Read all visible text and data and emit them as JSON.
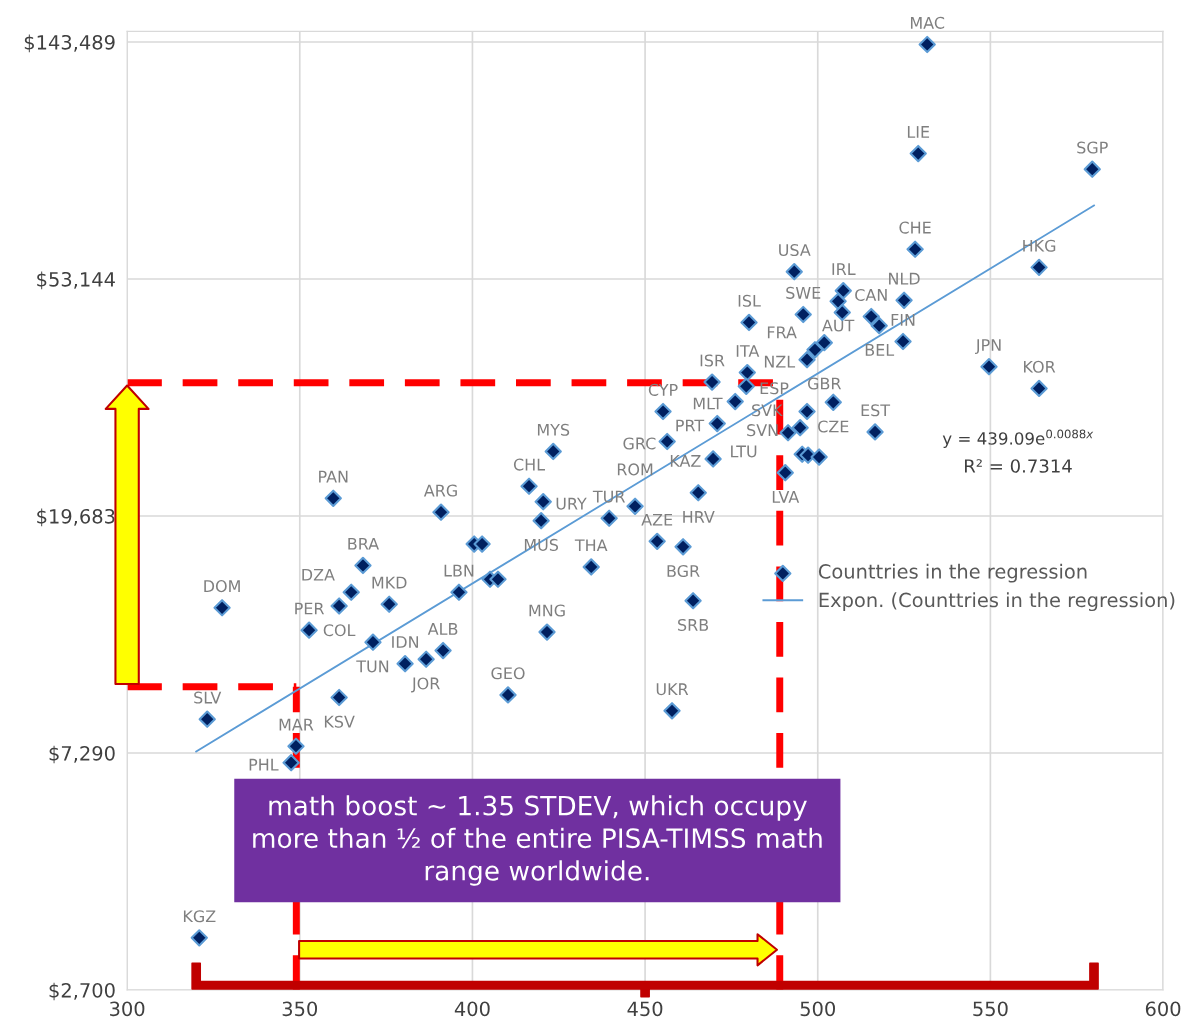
{
  "chart_data": {
    "type": "scatter",
    "xlim": [
      300,
      600
    ],
    "xticks": [
      300,
      350,
      400,
      450,
      500,
      550,
      600
    ],
    "ylim": [
      2700,
      150000
    ],
    "log": "y",
    "yticks": [
      {
        "value": 2700,
        "label": "$2,700"
      },
      {
        "value": 7290,
        "label": "$7,290"
      },
      {
        "value": 19683,
        "label": "$19,683"
      },
      {
        "value": 53144,
        "label": "$53,144"
      },
      {
        "value": 143489,
        "label": "$143,489"
      }
    ],
    "grid": true,
    "legend": "right",
    "series": [
      {
        "name": "Counttries in the regression",
        "type": "scatter",
        "marker": "diamond",
        "color": "#002060",
        "x": [
          531.7,
          529.1,
          579.5,
          528.2,
          564.1,
          493.2,
          525.0,
          507.4,
          505.9,
          507.1,
          495.8,
          515.5,
          517.8,
          480.1,
          524.7,
          501.9,
          499.2,
          496.9,
          479.6,
          479.3,
          469.4,
          476.1,
          504.5,
          496.9,
          470.9,
          494.9,
          491.4,
          516.6,
          495.5,
          497.2,
          500.4,
          469.7,
          490.6,
          549.6,
          564.1,
          455.2,
          456.4,
          465.4,
          423.4,
          416.4,
          420.5,
          419.9,
          390.9,
          400.5,
          402.8,
          405.1,
          407.4,
          396.1,
          434.4,
          439.6,
          447.1,
          453.5,
          461.0,
          463.9,
          359.7,
          368.3,
          364.9,
          361.4,
          327.5,
          375.9,
          352.7,
          371.2,
          380.5,
          386.6,
          391.5,
          361.4,
          323.2,
          348.9,
          347.5,
          410.3,
          421.6,
          457.8,
          320.9
        ],
        "values": [
          142000,
          89900,
          84200,
          60200,
          55800,
          54800,
          48600,
          50600,
          48400,
          46200,
          45800,
          45400,
          43700,
          44300,
          40900,
          40700,
          39500,
          37900,
          35900,
          33900,
          34500,
          31800,
          31700,
          30500,
          29000,
          28500,
          27900,
          28000,
          25500,
          25400,
          25200,
          25000,
          23600,
          36800,
          33600,
          30500,
          26900,
          21700,
          25800,
          22300,
          20900,
          19300,
          20000,
          17500,
          17500,
          15100,
          15100,
          14300,
          15900,
          19500,
          20500,
          17700,
          17300,
          13800,
          21200,
          16000,
          14300,
          13500,
          13400,
          13600,
          12200,
          11600,
          10600,
          10800,
          11200,
          9200,
          8400,
          7500,
          7000,
          9300,
          12100,
          8700,
          3360
        ]
      },
      {
        "name": "Expon. (Counttries in the regression)",
        "type": "line",
        "marker": "none",
        "line_style": "solid",
        "color": "#5b9bd5",
        "x": [
          320,
          580
        ],
        "values": [
          7337,
          72300
        ]
      }
    ],
    "ref_lines": [
      {
        "axis": "y",
        "value": 34400,
        "color": "#ff0000",
        "line_style": "dashed"
      },
      {
        "axis": "y",
        "value": 9620,
        "color": "#ff0000",
        "line_style": "dashed"
      },
      {
        "axis": "x",
        "value": 349,
        "color": "#ff0000",
        "line_style": "dashed"
      },
      {
        "axis": "x",
        "value": 489,
        "color": "#ff0000",
        "line_style": "dashed"
      }
    ],
    "annotations": [
      {
        "text": "MAC",
        "x": 531.7,
        "y": 142000
      },
      {
        "text": "LIE",
        "x": 529.1,
        "y": 89900
      },
      {
        "text": "SGP",
        "x": 579.5,
        "y": 84200
      },
      {
        "text": "CHE",
        "x": 528.2,
        "y": 60200
      },
      {
        "text": "HKG",
        "x": 564.1,
        "y": 55800
      },
      {
        "text": "USA",
        "x": 493.2,
        "y": 54800
      },
      {
        "text": "NLD",
        "x": 525.0,
        "y": 48600
      },
      {
        "text": "IRL",
        "x": 507.4,
        "y": 50600
      },
      {
        "text": "AUT",
        "x": 505.9,
        "y": 48400
      },
      {
        "text": "SWE",
        "x": 495.8,
        "y": 45800
      },
      {
        "text": "CAN",
        "x": 515.5,
        "y": 45400
      },
      {
        "text": "BEL",
        "x": 517.8,
        "y": 43700
      },
      {
        "text": "ISL",
        "x": 480.1,
        "y": 44300
      },
      {
        "text": "FIN",
        "x": 524.7,
        "y": 40900
      },
      {
        "text": "GBR",
        "x": 501.9,
        "y": 40700
      },
      {
        "text": "FRA",
        "x": 499.2,
        "y": 39500
      },
      {
        "text": "NZL",
        "x": 496.9,
        "y": 37900
      },
      {
        "text": "ITA",
        "x": 479.6,
        "y": 35900
      },
      {
        "text": "ESP",
        "x": 479.3,
        "y": 33900
      },
      {
        "text": "ISR",
        "x": 469.4,
        "y": 34500
      },
      {
        "text": "MLT",
        "x": 476.1,
        "y": 31800
      },
      {
        "text": "CZE",
        "x": 504.5,
        "y": 31700
      },
      {
        "text": "SVN",
        "x": 496.9,
        "y": 30500
      },
      {
        "text": "PRT",
        "x": 470.9,
        "y": 29000
      },
      {
        "text": "SVK",
        "x": 494.9,
        "y": 28500
      },
      {
        "text": "LTU",
        "x": 491.4,
        "y": 27900
      },
      {
        "text": "EST",
        "x": 516.6,
        "y": 28000
      },
      {
        "text": "KAZ",
        "x": 469.7,
        "y": 25000
      },
      {
        "text": "LVA",
        "x": 490.6,
        "y": 23600
      },
      {
        "text": "JPN",
        "x": 549.6,
        "y": 36800
      },
      {
        "text": "KOR",
        "x": 564.1,
        "y": 33600
      },
      {
        "text": "CYP",
        "x": 455.2,
        "y": 30500
      },
      {
        "text": "GRC",
        "x": 456.4,
        "y": 26900
      },
      {
        "text": "HRV",
        "x": 465.4,
        "y": 21700
      },
      {
        "text": "MYS",
        "x": 423.4,
        "y": 25800
      },
      {
        "text": "CHL",
        "x": 416.4,
        "y": 22300
      },
      {
        "text": "URY",
        "x": 420.5,
        "y": 20900
      },
      {
        "text": "MUS",
        "x": 419.9,
        "y": 19300
      },
      {
        "text": "ARG",
        "x": 390.9,
        "y": 20000
      },
      {
        "text": "LBN",
        "x": 396.1,
        "y": 14300
      },
      {
        "text": "THA",
        "x": 434.4,
        "y": 15900
      },
      {
        "text": "TUR",
        "x": 439.6,
        "y": 19500
      },
      {
        "text": "ROM",
        "x": 447.1,
        "y": 20500
      },
      {
        "text": "AZE",
        "x": 453.5,
        "y": 17700
      },
      {
        "text": "BGR",
        "x": 461.0,
        "y": 17300
      },
      {
        "text": "SRB",
        "x": 463.9,
        "y": 13800
      },
      {
        "text": "PAN",
        "x": 359.7,
        "y": 21200
      },
      {
        "text": "BRA",
        "x": 368.3,
        "y": 16000
      },
      {
        "text": "DZA",
        "x": 364.9,
        "y": 14300
      },
      {
        "text": "COL",
        "x": 361.4,
        "y": 13500
      },
      {
        "text": "DOM",
        "x": 327.5,
        "y": 13400
      },
      {
        "text": "MKD",
        "x": 375.9,
        "y": 13600
      },
      {
        "text": "PER",
        "x": 352.7,
        "y": 12200
      },
      {
        "text": "TUN",
        "x": 371.2,
        "y": 11600
      },
      {
        "text": "IDN",
        "x": 380.5,
        "y": 10600
      },
      {
        "text": "JOR",
        "x": 386.6,
        "y": 10800
      },
      {
        "text": "ALB",
        "x": 391.5,
        "y": 11200
      },
      {
        "text": "KSV",
        "x": 361.4,
        "y": 9200
      },
      {
        "text": "SLV",
        "x": 323.2,
        "y": 8400
      },
      {
        "text": "MAR",
        "x": 348.9,
        "y": 7500
      },
      {
        "text": "PHL",
        "x": 347.5,
        "y": 7000
      },
      {
        "text": "GEO",
        "x": 410.3,
        "y": 9300
      },
      {
        "text": "MNG",
        "x": 421.6,
        "y": 12100
      },
      {
        "text": "UKR",
        "x": 457.8,
        "y": 8700
      },
      {
        "text": "KGZ",
        "x": 320.9,
        "y": 3360
      },
      "y = 439.09e$^{0.0088x}$",
      "R² = 0.7314",
      "math boost ~ 1.35 STDEV, which occupy more than ½ of the entire PISA-TIMSS math range worldwide."
    ]
  }
}
